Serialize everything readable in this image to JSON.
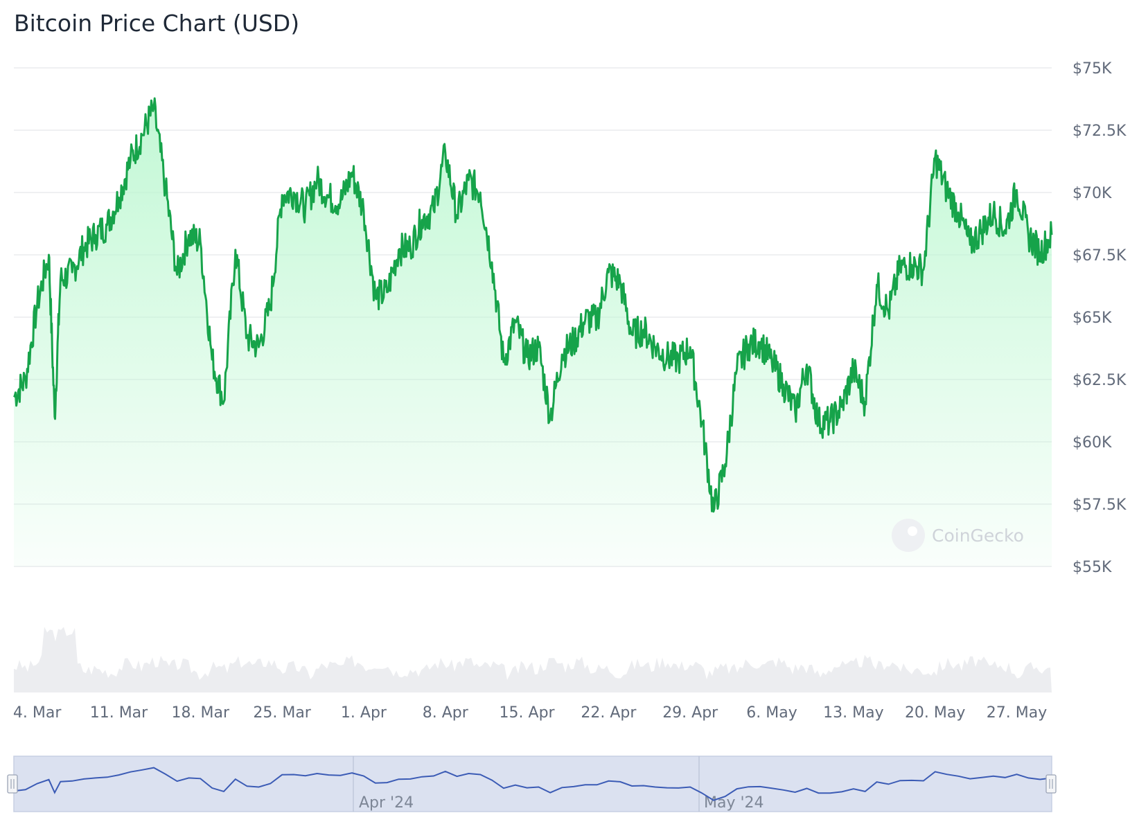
{
  "title": "Bitcoin Price Chart (USD)",
  "watermark": "CoinGecko",
  "colors": {
    "line": "#16a34a",
    "area": "#bbf7d0",
    "volume": "#e5e7eb",
    "navigator_bg": "#dbe1f0",
    "navigator_line": "#3b5bb5",
    "grid": "#e5e7eb"
  },
  "navigator": {
    "labels": [
      "Apr '24",
      "May '24"
    ]
  },
  "chart_data": {
    "type": "line",
    "title": "Bitcoin Price Chart (USD)",
    "xlabel": "",
    "ylabel": "",
    "x_range": [
      "2024-03-02",
      "2024-05-30"
    ],
    "ylim": [
      55000,
      75000
    ],
    "y_ticks": [
      "$55K",
      "$57.5K",
      "$60K",
      "$62.5K",
      "$65K",
      "$67.5K",
      "$70K",
      "$72.5K",
      "$75K"
    ],
    "x_ticks": [
      {
        "date": "2024-03-04",
        "label": "4. Mar"
      },
      {
        "date": "2024-03-11",
        "label": "11. Mar"
      },
      {
        "date": "2024-03-18",
        "label": "18. Mar"
      },
      {
        "date": "2024-03-25",
        "label": "25. Mar"
      },
      {
        "date": "2024-04-01",
        "label": "1. Apr"
      },
      {
        "date": "2024-04-08",
        "label": "8. Apr"
      },
      {
        "date": "2024-04-15",
        "label": "15. Apr"
      },
      {
        "date": "2024-04-22",
        "label": "22. Apr"
      },
      {
        "date": "2024-04-29",
        "label": "29. Apr"
      },
      {
        "date": "2024-05-06",
        "label": "6. May"
      },
      {
        "date": "2024-05-13",
        "label": "13. May"
      },
      {
        "date": "2024-05-20",
        "label": "20. May"
      },
      {
        "date": "2024-05-27",
        "label": "27. May"
      }
    ],
    "grid": true,
    "series": [
      {
        "name": "Price",
        "points": [
          [
            "2024-03-02",
            61800
          ],
          [
            "2024-03-03",
            62500
          ],
          [
            "2024-03-04",
            65500
          ],
          [
            "2024-03-05",
            67500
          ],
          [
            "2024-03-05T12",
            61000
          ],
          [
            "2024-03-06",
            66500
          ],
          [
            "2024-03-07",
            66800
          ],
          [
            "2024-03-08",
            67800
          ],
          [
            "2024-03-09",
            68300
          ],
          [
            "2024-03-10",
            68700
          ],
          [
            "2024-03-11",
            69800
          ],
          [
            "2024-03-12",
            71300
          ],
          [
            "2024-03-13",
            72300
          ],
          [
            "2024-03-14",
            73400
          ],
          [
            "2024-03-15",
            70200
          ],
          [
            "2024-03-16",
            66700
          ],
          [
            "2024-03-17",
            68300
          ],
          [
            "2024-03-18",
            68000
          ],
          [
            "2024-03-19",
            63300
          ],
          [
            "2024-03-20",
            61600
          ],
          [
            "2024-03-21",
            67700
          ],
          [
            "2024-03-22",
            64200
          ],
          [
            "2024-03-23",
            63800
          ],
          [
            "2024-03-24",
            65500
          ],
          [
            "2024-03-25",
            69900
          ],
          [
            "2024-03-26",
            70000
          ],
          [
            "2024-03-27",
            69400
          ],
          [
            "2024-03-28",
            70500
          ],
          [
            "2024-03-29",
            69800
          ],
          [
            "2024-03-30",
            69600
          ],
          [
            "2024-03-31",
            70800
          ],
          [
            "2024-04-01",
            69300
          ],
          [
            "2024-04-02",
            65800
          ],
          [
            "2024-04-03",
            66000
          ],
          [
            "2024-04-04",
            67700
          ],
          [
            "2024-04-05",
            67800
          ],
          [
            "2024-04-06",
            68900
          ],
          [
            "2024-04-07",
            69300
          ],
          [
            "2024-04-08",
            71600
          ],
          [
            "2024-04-09",
            69100
          ],
          [
            "2024-04-10",
            70500
          ],
          [
            "2024-04-11",
            70000
          ],
          [
            "2024-04-12",
            67200
          ],
          [
            "2024-04-13",
            63200
          ],
          [
            "2024-04-14",
            64800
          ],
          [
            "2024-04-15",
            63400
          ],
          [
            "2024-04-16",
            63800
          ],
          [
            "2024-04-17",
            61000
          ],
          [
            "2024-04-18",
            63500
          ],
          [
            "2024-04-19",
            64000
          ],
          [
            "2024-04-20",
            64900
          ],
          [
            "2024-04-21",
            64900
          ],
          [
            "2024-04-22",
            66800
          ],
          [
            "2024-04-23",
            66400
          ],
          [
            "2024-04-24",
            64300
          ],
          [
            "2024-04-25",
            64500
          ],
          [
            "2024-04-26",
            63800
          ],
          [
            "2024-04-27",
            63400
          ],
          [
            "2024-04-28",
            63300
          ],
          [
            "2024-04-29",
            63800
          ],
          [
            "2024-04-30",
            60800
          ],
          [
            "2024-05-01",
            57200
          ],
          [
            "2024-05-02",
            59100
          ],
          [
            "2024-05-03",
            62900
          ],
          [
            "2024-05-04",
            63900
          ],
          [
            "2024-05-05",
            64000
          ],
          [
            "2024-05-06",
            63200
          ],
          [
            "2024-05-07",
            62300
          ],
          [
            "2024-05-08",
            61200
          ],
          [
            "2024-05-09",
            63100
          ],
          [
            "2024-05-10",
            60800
          ],
          [
            "2024-05-11",
            60800
          ],
          [
            "2024-05-12",
            61400
          ],
          [
            "2024-05-13",
            62900
          ],
          [
            "2024-05-14",
            61600
          ],
          [
            "2024-05-15",
            66300
          ],
          [
            "2024-05-16",
            65200
          ],
          [
            "2024-05-17",
            67000
          ],
          [
            "2024-05-18",
            67100
          ],
          [
            "2024-05-19",
            66900
          ],
          [
            "2024-05-20",
            71400
          ],
          [
            "2024-05-21",
            70100
          ],
          [
            "2024-05-22",
            69200
          ],
          [
            "2024-05-23",
            67900
          ],
          [
            "2024-05-24",
            68500
          ],
          [
            "2024-05-25",
            69200
          ],
          [
            "2024-05-26",
            68500
          ],
          [
            "2024-05-27",
            70100
          ],
          [
            "2024-05-28",
            68300
          ],
          [
            "2024-05-29",
            67600
          ],
          [
            "2024-05-30",
            68300
          ]
        ]
      }
    ]
  }
}
